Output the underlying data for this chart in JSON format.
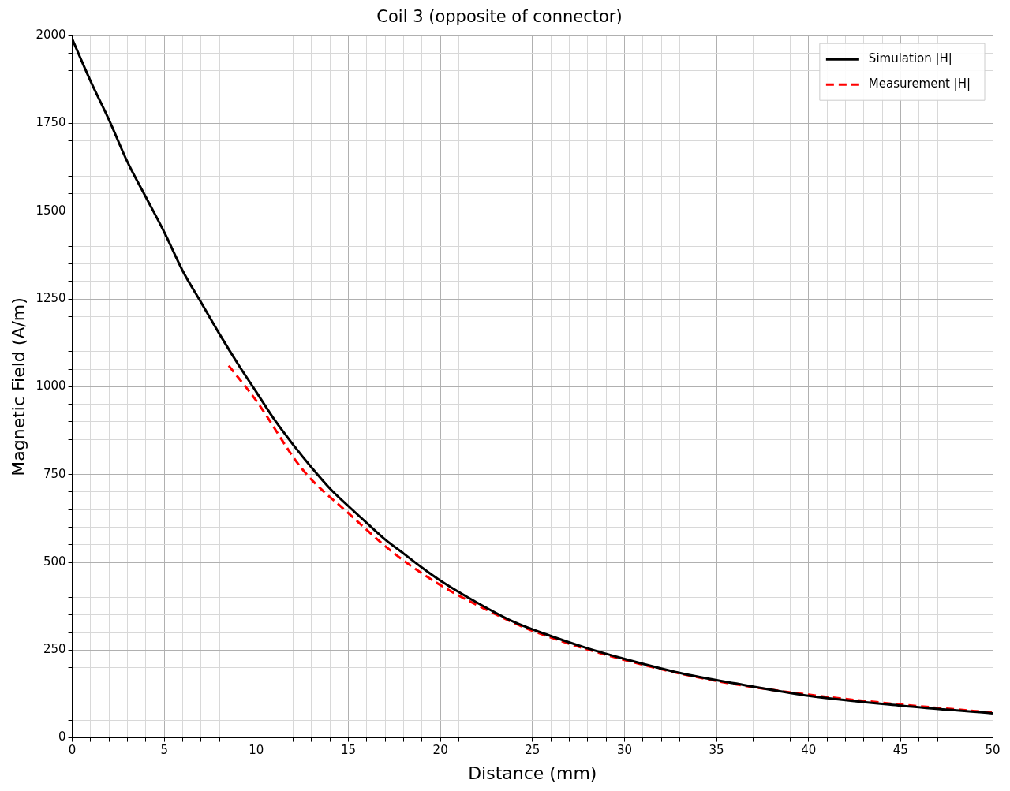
{
  "chart_data": {
    "type": "line",
    "title": "Coil 3 (opposite of connector)",
    "xlabel": "Distance (mm)",
    "ylabel": "Magnetic Field (A/m)",
    "xlim": [
      0,
      50
    ],
    "ylim": [
      0,
      2000
    ],
    "xticks": [
      0,
      {
        "value": 1,
        "label": null
      },
      {
        "value": 2,
        "label": null
      },
      {
        "value": 3,
        "label": null
      },
      {
        "value": 4,
        "label": null
      },
      5,
      {
        "value": 6,
        "label": null
      },
      {
        "value": 7,
        "label": null
      },
      {
        "value": 8,
        "label": null
      },
      {
        "value": 9,
        "label": null
      },
      10,
      {
        "value": 11,
        "label": null
      },
      {
        "value": 12,
        "label": null
      },
      {
        "value": 13,
        "label": null
      },
      {
        "value": 14,
        "label": null
      },
      15,
      {
        "value": 16,
        "label": null
      },
      {
        "value": 17,
        "label": null
      },
      {
        "value": 18,
        "label": null
      },
      {
        "value": 19,
        "label": null
      },
      20,
      {
        "value": 21,
        "label": null
      },
      {
        "value": 22,
        "label": null
      },
      {
        "value": 23,
        "label": null
      },
      {
        "value": 24,
        "label": null
      },
      25,
      {
        "value": 26,
        "label": null
      },
      {
        "value": 27,
        "label": null
      },
      {
        "value": 28,
        "label": null
      },
      {
        "value": 29,
        "label": null
      },
      30,
      {
        "value": 31,
        "label": null
      },
      {
        "value": 32,
        "label": null
      },
      {
        "value": 33,
        "label": null
      },
      {
        "value": 34,
        "label": null
      },
      35,
      {
        "value": 36,
        "label": null
      },
      {
        "value": 37,
        "label": null
      },
      {
        "value": 38,
        "label": null
      },
      {
        "value": 39,
        "label": null
      },
      40,
      {
        "value": 41,
        "label": null
      },
      {
        "value": 42,
        "label": null
      },
      {
        "value": 43,
        "label": null
      },
      {
        "value": 44,
        "label": null
      },
      45,
      {
        "value": 46,
        "label": null
      },
      {
        "value": 47,
        "label": null
      },
      {
        "value": 48,
        "label": null
      },
      {
        "value": 49,
        "label": null
      },
      50
    ],
    "yticks": [
      0,
      {
        "value": 50,
        "label": null
      },
      {
        "value": 100,
        "label": null
      },
      {
        "value": 150,
        "label": null
      },
      {
        "value": 200,
        "label": null
      },
      250,
      {
        "value": 300,
        "label": null
      },
      {
        "value": 350,
        "label": null
      },
      {
        "value": 400,
        "label": null
      },
      {
        "value": 450,
        "label": null
      },
      500,
      {
        "value": 550,
        "label": null
      },
      {
        "value": 600,
        "label": null
      },
      {
        "value": 650,
        "label": null
      },
      {
        "value": 700,
        "label": null
      },
      750,
      {
        "value": 800,
        "label": null
      },
      {
        "value": 850,
        "label": null
      },
      {
        "value": 900,
        "label": null
      },
      {
        "value": 950,
        "label": null
      },
      1000,
      {
        "value": 1050,
        "label": null
      },
      {
        "value": 1100,
        "label": null
      },
      {
        "value": 1150,
        "label": null
      },
      {
        "value": 1200,
        "label": null
      },
      1250,
      {
        "value": 1300,
        "label": null
      },
      {
        "value": 1350,
        "label": null
      },
      {
        "value": 1400,
        "label": null
      },
      {
        "value": 1450,
        "label": null
      },
      1500,
      {
        "value": 1550,
        "label": null
      },
      {
        "value": 1600,
        "label": null
      },
      {
        "value": 1650,
        "label": null
      },
      {
        "value": 1700,
        "label": null
      },
      1750,
      {
        "value": 1800,
        "label": null
      },
      {
        "value": 1850,
        "label": null
      },
      {
        "value": 1900,
        "label": null
      },
      {
        "value": 1950,
        "label": null
      },
      2000
    ],
    "grid": true,
    "legend": "top right",
    "marker": "none",
    "series": [
      {
        "name": "Simulation |H|",
        "color": "#000000",
        "line_style": "solid",
        "x": [
          0,
          1,
          2,
          3,
          4,
          5,
          6,
          7,
          8,
          9,
          10,
          11,
          12,
          13,
          14,
          15,
          16,
          17,
          18,
          19,
          20,
          22,
          24,
          26,
          28,
          30,
          33,
          36,
          40,
          45,
          50
        ],
        "values": [
          1990,
          1870,
          1760,
          1640,
          1540,
          1440,
          1330,
          1240,
          1150,
          1065,
          985,
          905,
          835,
          770,
          710,
          660,
          612,
          565,
          525,
          485,
          448,
          385,
          330,
          290,
          255,
          225,
          185,
          155,
          120,
          92,
          70
        ]
      },
      {
        "name": "Measurement |H|",
        "color": "#ff0000",
        "line_style": "dashed",
        "x": [
          8.5,
          10,
          12.5,
          15,
          17.5,
          20,
          22.5,
          25,
          30,
          35,
          40,
          45,
          50
        ],
        "values": [
          1060,
          960,
          765,
          640,
          525,
          435,
          365,
          305,
          222,
          162,
          123,
          95,
          72
        ]
      }
    ]
  }
}
